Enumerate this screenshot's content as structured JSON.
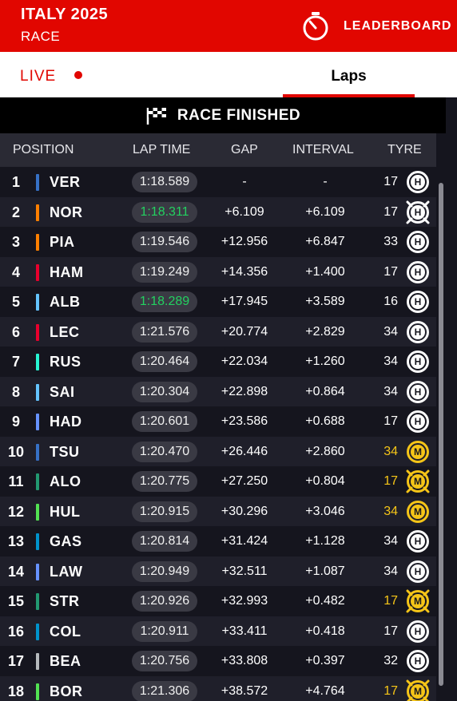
{
  "header": {
    "title": "ITALY 2025",
    "subtitle": "RACE",
    "leaderboard_label": "LEADERBOARD",
    "leaderboard_icon": "stopwatch-icon"
  },
  "tabs": {
    "live_label": "LIVE",
    "laps_label": "Laps",
    "active": "Laps"
  },
  "status": {
    "text": "RACE FINISHED",
    "icon": "chequered-flag-icon"
  },
  "columns": {
    "position": "POSITION",
    "lap_time": "LAP TIME",
    "gap": "GAP",
    "interval": "INTERVAL",
    "tyre": "TYRE"
  },
  "colors": {
    "brand_red": "#e10600",
    "fastest_lap_green": "#23d160",
    "medium_tyre_yellow": "#f5c518",
    "hard_tyre_white": "#ffffff"
  },
  "rows": [
    {
      "pos": "1",
      "driver": "VER",
      "team_color": "#3671c6",
      "lap": "1:18.589",
      "best": false,
      "gap": "-",
      "int": "-",
      "tyre_laps": "17",
      "compound": "H",
      "pitting": false
    },
    {
      "pos": "2",
      "driver": "NOR",
      "team_color": "#ff8000",
      "lap": "1:18.311",
      "best": true,
      "gap": "+6.109",
      "int": "+6.109",
      "tyre_laps": "17",
      "compound": "H",
      "pitting": true
    },
    {
      "pos": "3",
      "driver": "PIA",
      "team_color": "#ff8000",
      "lap": "1:19.546",
      "best": false,
      "gap": "+12.956",
      "int": "+6.847",
      "tyre_laps": "33",
      "compound": "H",
      "pitting": false
    },
    {
      "pos": "4",
      "driver": "HAM",
      "team_color": "#e8002d",
      "lap": "1:19.249",
      "best": false,
      "gap": "+14.356",
      "int": "+1.400",
      "tyre_laps": "17",
      "compound": "H",
      "pitting": false
    },
    {
      "pos": "5",
      "driver": "ALB",
      "team_color": "#64c4ff",
      "lap": "1:18.289",
      "best": true,
      "gap": "+17.945",
      "int": "+3.589",
      "tyre_laps": "16",
      "compound": "H",
      "pitting": false
    },
    {
      "pos": "6",
      "driver": "LEC",
      "team_color": "#e8002d",
      "lap": "1:21.576",
      "best": false,
      "gap": "+20.774",
      "int": "+2.829",
      "tyre_laps": "34",
      "compound": "H",
      "pitting": false
    },
    {
      "pos": "7",
      "driver": "RUS",
      "team_color": "#27f4d2",
      "lap": "1:20.464",
      "best": false,
      "gap": "+22.034",
      "int": "+1.260",
      "tyre_laps": "34",
      "compound": "H",
      "pitting": false
    },
    {
      "pos": "8",
      "driver": "SAI",
      "team_color": "#64c4ff",
      "lap": "1:20.304",
      "best": false,
      "gap": "+22.898",
      "int": "+0.864",
      "tyre_laps": "34",
      "compound": "H",
      "pitting": false
    },
    {
      "pos": "9",
      "driver": "HAD",
      "team_color": "#6692ff",
      "lap": "1:20.601",
      "best": false,
      "gap": "+23.586",
      "int": "+0.688",
      "tyre_laps": "17",
      "compound": "H",
      "pitting": false
    },
    {
      "pos": "10",
      "driver": "TSU",
      "team_color": "#3671c6",
      "lap": "1:20.470",
      "best": false,
      "gap": "+26.446",
      "int": "+2.860",
      "tyre_laps": "34",
      "compound": "M",
      "pitting": false
    },
    {
      "pos": "11",
      "driver": "ALO",
      "team_color": "#229971",
      "lap": "1:20.775",
      "best": false,
      "gap": "+27.250",
      "int": "+0.804",
      "tyre_laps": "17",
      "compound": "M",
      "pitting": true
    },
    {
      "pos": "12",
      "driver": "HUL",
      "team_color": "#52e252",
      "lap": "1:20.915",
      "best": false,
      "gap": "+30.296",
      "int": "+3.046",
      "tyre_laps": "34",
      "compound": "M",
      "pitting": false
    },
    {
      "pos": "13",
      "driver": "GAS",
      "team_color": "#0093cc",
      "lap": "1:20.814",
      "best": false,
      "gap": "+31.424",
      "int": "+1.128",
      "tyre_laps": "34",
      "compound": "H",
      "pitting": false
    },
    {
      "pos": "14",
      "driver": "LAW",
      "team_color": "#6692ff",
      "lap": "1:20.949",
      "best": false,
      "gap": "+32.511",
      "int": "+1.087",
      "tyre_laps": "34",
      "compound": "H",
      "pitting": false
    },
    {
      "pos": "15",
      "driver": "STR",
      "team_color": "#229971",
      "lap": "1:20.926",
      "best": false,
      "gap": "+32.993",
      "int": "+0.482",
      "tyre_laps": "17",
      "compound": "M",
      "pitting": true
    },
    {
      "pos": "16",
      "driver": "COL",
      "team_color": "#0093cc",
      "lap": "1:20.911",
      "best": false,
      "gap": "+33.411",
      "int": "+0.418",
      "tyre_laps": "17",
      "compound": "H",
      "pitting": false
    },
    {
      "pos": "17",
      "driver": "BEA",
      "team_color": "#b6babd",
      "lap": "1:20.756",
      "best": false,
      "gap": "+33.808",
      "int": "+0.397",
      "tyre_laps": "32",
      "compound": "H",
      "pitting": false
    },
    {
      "pos": "18",
      "driver": "BOR",
      "team_color": "#52e252",
      "lap": "1:21.306",
      "best": false,
      "gap": "+38.572",
      "int": "+4.764",
      "tyre_laps": "17",
      "compound": "M",
      "pitting": true
    }
  ]
}
